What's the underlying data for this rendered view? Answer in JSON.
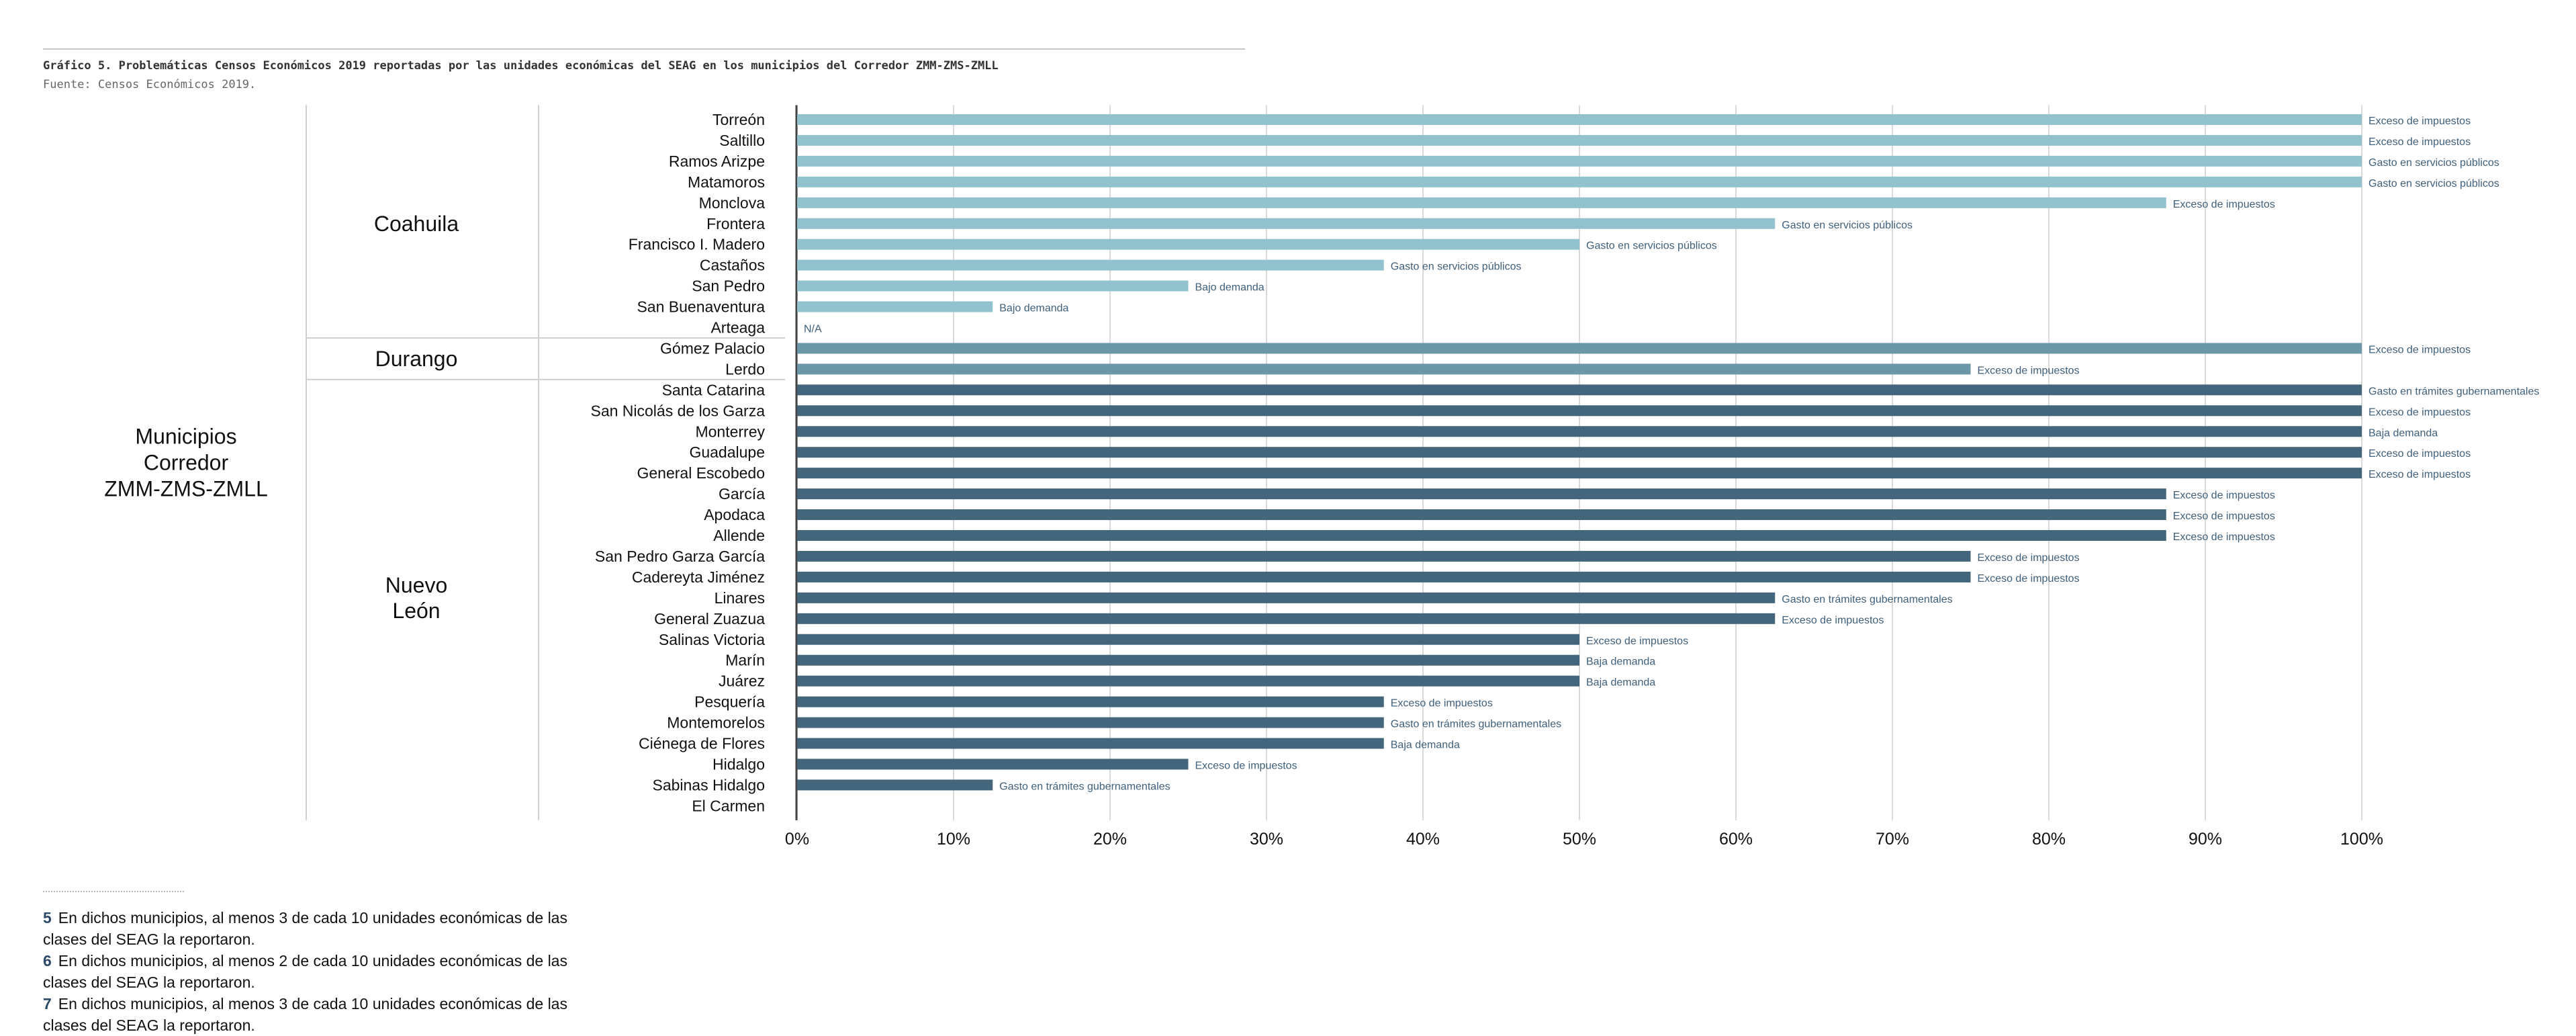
{
  "title": "Gráfico 5. Problemáticas Censos Económicos 2019 reportadas por las unidades económicas del SEAG en los municipios del Corredor ZMM-ZMS-ZMLL",
  "source": "Fuente: Censos Económicos 2019.",
  "colors": {
    "Coahuila": "#93c2cf",
    "Durango": "#6b97a8",
    "Nuevo León": "#43667c",
    "label": "#3f5f7a",
    "grid": "#d9d9d9"
  },
  "chart_data": {
    "type": "bar",
    "orientation": "horizontal",
    "group_header": "Municipios Corredor ZMM-ZMS-ZMLL",
    "group_header_lines": [
      "Municipios",
      "Corredor",
      "ZMM-ZMS-ZMLL"
    ],
    "xlim": [
      0,
      100
    ],
    "x_ticks": [
      "0%",
      "10%",
      "20%",
      "30%",
      "40%",
      "50%",
      "60%",
      "70%",
      "80%",
      "90%",
      "100%"
    ],
    "grid": true,
    "groups": [
      {
        "name": "Coahuila",
        "lines": [
          "Coahuila"
        ],
        "rows": [
          {
            "municipio": "Torreón",
            "value": 100,
            "label": "Exceso de impuestos"
          },
          {
            "municipio": "Saltillo",
            "value": 100,
            "label": "Exceso de impuestos"
          },
          {
            "municipio": "Ramos Arizpe",
            "value": 100,
            "label": "Gasto en servicios públicos"
          },
          {
            "municipio": "Matamoros",
            "value": 100,
            "label": "Gasto en servicios públicos"
          },
          {
            "municipio": "Monclova",
            "value": 87.5,
            "label": "Exceso de impuestos"
          },
          {
            "municipio": "Frontera",
            "value": 62.5,
            "label": "Gasto en servicios públicos"
          },
          {
            "municipio": "Francisco I. Madero",
            "value": 50,
            "label": "Gasto en servicios públicos"
          },
          {
            "municipio": "Castaños",
            "value": 37.5,
            "label": "Gasto en servicios públicos"
          },
          {
            "municipio": "San Pedro",
            "value": 25,
            "label": "Bajo demanda"
          },
          {
            "municipio": "San Buenaventura",
            "value": 12.5,
            "label": "Bajo demanda"
          },
          {
            "municipio": "Arteaga",
            "value": 0,
            "label": "N/A"
          }
        ]
      },
      {
        "name": "Durango",
        "lines": [
          "Durango"
        ],
        "rows": [
          {
            "municipio": "Gómez Palacio",
            "value": 100,
            "label": "Exceso de impuestos"
          },
          {
            "municipio": "Lerdo",
            "value": 75,
            "label": "Exceso de impuestos"
          }
        ]
      },
      {
        "name": "Nuevo León",
        "lines": [
          "Nuevo",
          "León"
        ],
        "rows": [
          {
            "municipio": "Santa Catarina",
            "value": 100,
            "label": "Gasto en trámites gubernamentales"
          },
          {
            "municipio": "San Nicolás de los Garza",
            "value": 100,
            "label": "Exceso de impuestos"
          },
          {
            "municipio": "Monterrey",
            "value": 100,
            "label": "Baja demanda"
          },
          {
            "municipio": "Guadalupe",
            "value": 100,
            "label": "Exceso de impuestos"
          },
          {
            "municipio": "General Escobedo",
            "value": 100,
            "label": "Exceso de impuestos"
          },
          {
            "municipio": "García",
            "value": 87.5,
            "label": "Exceso de impuestos"
          },
          {
            "municipio": "Apodaca",
            "value": 87.5,
            "label": "Exceso de impuestos"
          },
          {
            "municipio": "Allende",
            "value": 87.5,
            "label": "Exceso de impuestos"
          },
          {
            "municipio": "San Pedro Garza García",
            "value": 75,
            "label": "Exceso de impuestos"
          },
          {
            "municipio": "Cadereyta Jiménez",
            "value": 75,
            "label": "Exceso de impuestos"
          },
          {
            "municipio": "Linares",
            "value": 62.5,
            "label": "Gasto en trámites gubernamentales"
          },
          {
            "municipio": "General Zuazua",
            "value": 62.5,
            "label": "Exceso de impuestos"
          },
          {
            "municipio": "Salinas Victoria",
            "value": 50,
            "label": "Exceso de impuestos"
          },
          {
            "municipio": "Marín",
            "value": 50,
            "label": "Baja demanda"
          },
          {
            "municipio": "Juárez",
            "value": 50,
            "label": "Baja demanda"
          },
          {
            "municipio": "Pesquería",
            "value": 37.5,
            "label": "Exceso de impuestos"
          },
          {
            "municipio": "Montemorelos",
            "value": 37.5,
            "label": "Gasto en trámites gubernamentales"
          },
          {
            "municipio": "Ciénega de Flores",
            "value": 37.5,
            "label": "Baja demanda"
          },
          {
            "municipio": "Hidalgo",
            "value": 25,
            "label": "Exceso de impuestos"
          },
          {
            "municipio": "Sabinas Hidalgo",
            "value": 12.5,
            "label": "Gasto en trámites gubernamentales"
          },
          {
            "municipio": "El Carmen",
            "value": 0,
            "label": ""
          }
        ]
      }
    ]
  },
  "footnotes": [
    {
      "num": "5",
      "text": "En dichos municipios, al menos 3 de cada 10 unidades económicas de las clases del SEAG la reportaron."
    },
    {
      "num": "6",
      "text": "En dichos municipios, al menos 2 de cada 10 unidades económicas de las clases del SEAG la reportaron."
    },
    {
      "num": "7",
      "text": "En dichos municipios, al menos 3 de cada 10 unidades económicas de las clases del SEAG la reportaron."
    }
  ]
}
